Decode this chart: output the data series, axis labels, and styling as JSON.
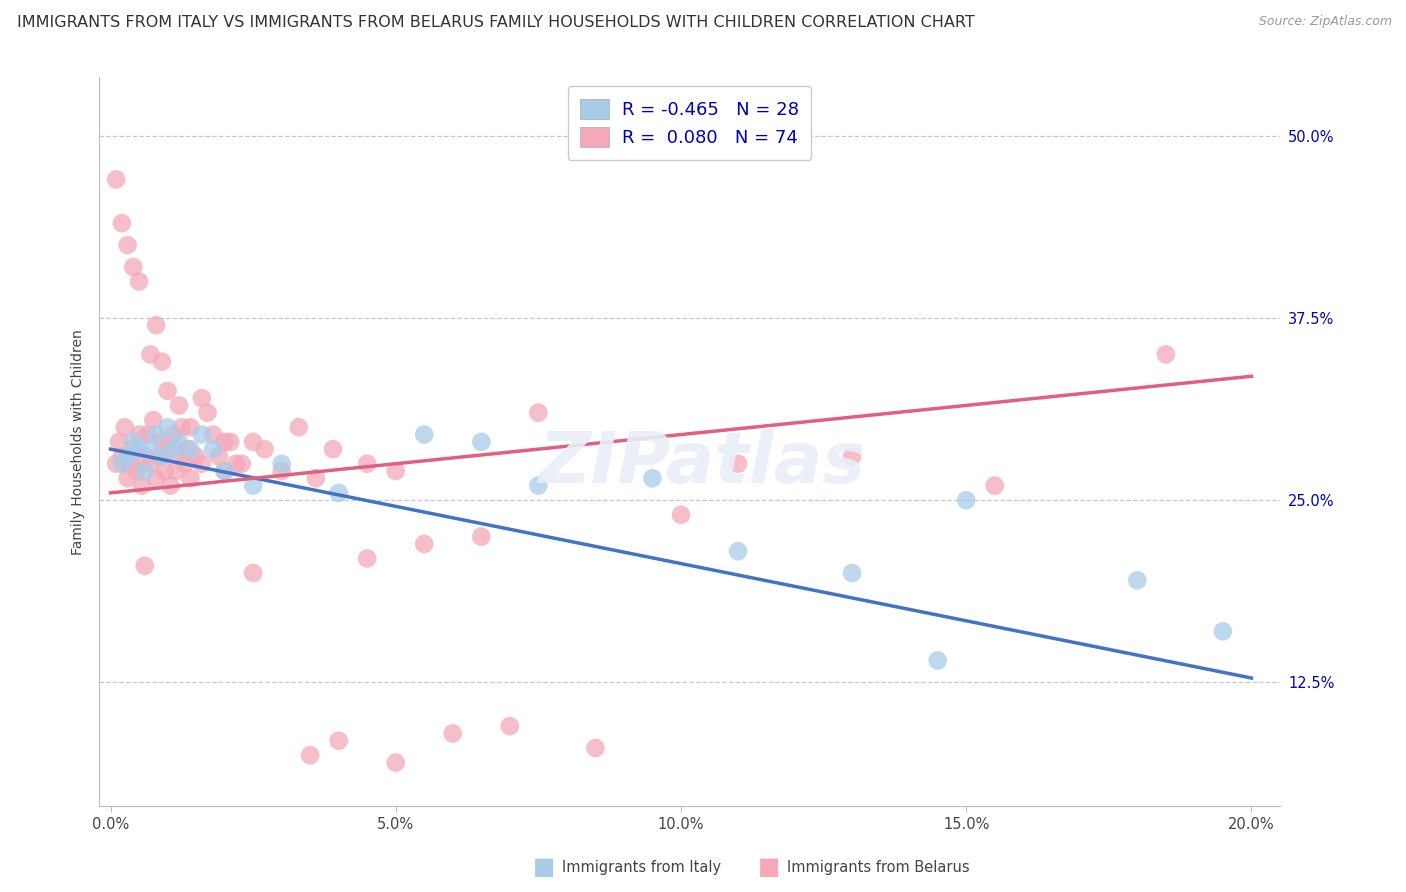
{
  "title": "IMMIGRANTS FROM ITALY VS IMMIGRANTS FROM BELARUS FAMILY HOUSEHOLDS WITH CHILDREN CORRELATION CHART",
  "source": "Source: ZipAtlas.com",
  "ylabel": "Family Households with Children",
  "x_tick_labels": [
    "0.0%",
    "5.0%",
    "10.0%",
    "15.0%",
    "20.0%"
  ],
  "x_tick_vals": [
    0.0,
    5.0,
    10.0,
    15.0,
    20.0
  ],
  "y_tick_labels": [
    "12.5%",
    "25.0%",
    "37.5%",
    "50.0%"
  ],
  "y_tick_vals": [
    12.5,
    25.0,
    37.5,
    50.0
  ],
  "xlim": [
    -0.2,
    20.5
  ],
  "ylim": [
    4.0,
    54.0
  ],
  "legend_italy_label": "Immigrants from Italy",
  "legend_belarus_label": "Immigrants from Belarus",
  "italy_R": "-0.465",
  "italy_N": "28",
  "belarus_R": "0.080",
  "belarus_N": "74",
  "italy_color": "#A8CCE8",
  "italy_edge_color": "#A8CCE8",
  "belarus_color": "#F4A8B8",
  "belarus_edge_color": "#F4A8B8",
  "italy_line_color": "#4472C4",
  "belarus_line_color": "#E06080",
  "background_color": "#ffffff",
  "grid_color": "#c8c8c8",
  "title_fontsize": 11.5,
  "axis_label_fontsize": 10,
  "tick_fontsize": 10.5,
  "legend_r_n_color": "#0000BB",
  "italy_scatter_x": [
    0.2,
    0.3,
    0.4,
    0.5,
    0.6,
    0.7,
    0.8,
    0.9,
    1.0,
    1.1,
    1.2,
    1.4,
    1.6,
    1.8,
    2.0,
    2.5,
    3.0,
    4.0,
    5.5,
    6.5,
    7.5,
    9.5,
    11.0,
    13.0,
    14.5,
    15.0,
    18.0,
    19.5
  ],
  "italy_scatter_y": [
    27.5,
    28.0,
    29.0,
    28.5,
    27.0,
    28.5,
    29.5,
    28.0,
    30.0,
    28.5,
    29.0,
    28.5,
    29.5,
    28.5,
    27.0,
    26.0,
    27.5,
    25.5,
    29.5,
    29.0,
    26.0,
    26.5,
    21.5,
    20.0,
    14.0,
    25.0,
    19.5,
    16.0
  ],
  "belarus_scatter_x": [
    0.1,
    0.15,
    0.2,
    0.25,
    0.3,
    0.35,
    0.4,
    0.45,
    0.5,
    0.55,
    0.6,
    0.65,
    0.7,
    0.75,
    0.8,
    0.85,
    0.9,
    0.95,
    1.0,
    1.05,
    1.1,
    1.15,
    1.2,
    1.25,
    1.3,
    1.35,
    1.4,
    1.5,
    1.6,
    1.7,
    1.8,
    1.9,
    2.0,
    2.1,
    2.3,
    2.5,
    2.7,
    3.0,
    3.3,
    3.6,
    3.9,
    4.5,
    5.0,
    5.5,
    6.5,
    7.5,
    0.1,
    0.2,
    0.3,
    0.4,
    0.5,
    0.6,
    0.7,
    0.8,
    0.9,
    1.0,
    1.2,
    1.4,
    1.6,
    2.0,
    2.5,
    3.5,
    4.0,
    5.0,
    6.0,
    7.0,
    8.5,
    10.0,
    11.0,
    13.0,
    15.5,
    18.5,
    4.5,
    2.2
  ],
  "belarus_scatter_y": [
    27.5,
    29.0,
    28.0,
    30.0,
    26.5,
    27.5,
    28.5,
    27.0,
    29.5,
    26.0,
    28.0,
    29.5,
    27.5,
    30.5,
    26.5,
    28.0,
    29.0,
    27.0,
    28.5,
    26.0,
    29.5,
    27.0,
    28.0,
    30.0,
    27.5,
    28.5,
    26.5,
    28.0,
    27.5,
    31.0,
    29.5,
    28.0,
    27.0,
    29.0,
    27.5,
    29.0,
    28.5,
    27.0,
    30.0,
    26.5,
    28.5,
    27.5,
    27.0,
    22.0,
    22.5,
    31.0,
    47.0,
    44.0,
    42.5,
    41.0,
    40.0,
    20.5,
    35.0,
    37.0,
    34.5,
    32.5,
    31.5,
    30.0,
    32.0,
    29.0,
    20.0,
    7.5,
    8.5,
    7.0,
    9.0,
    9.5,
    8.0,
    24.0,
    27.5,
    28.0,
    26.0,
    35.0,
    21.0,
    27.5
  ],
  "italy_line_x0": 0.0,
  "italy_line_x1": 20.0,
  "italy_line_y0": 28.5,
  "italy_line_y1": 12.8,
  "belarus_line_x0": 0.0,
  "belarus_line_x1": 20.0,
  "belarus_line_y0": 25.5,
  "belarus_line_y1": 33.5
}
